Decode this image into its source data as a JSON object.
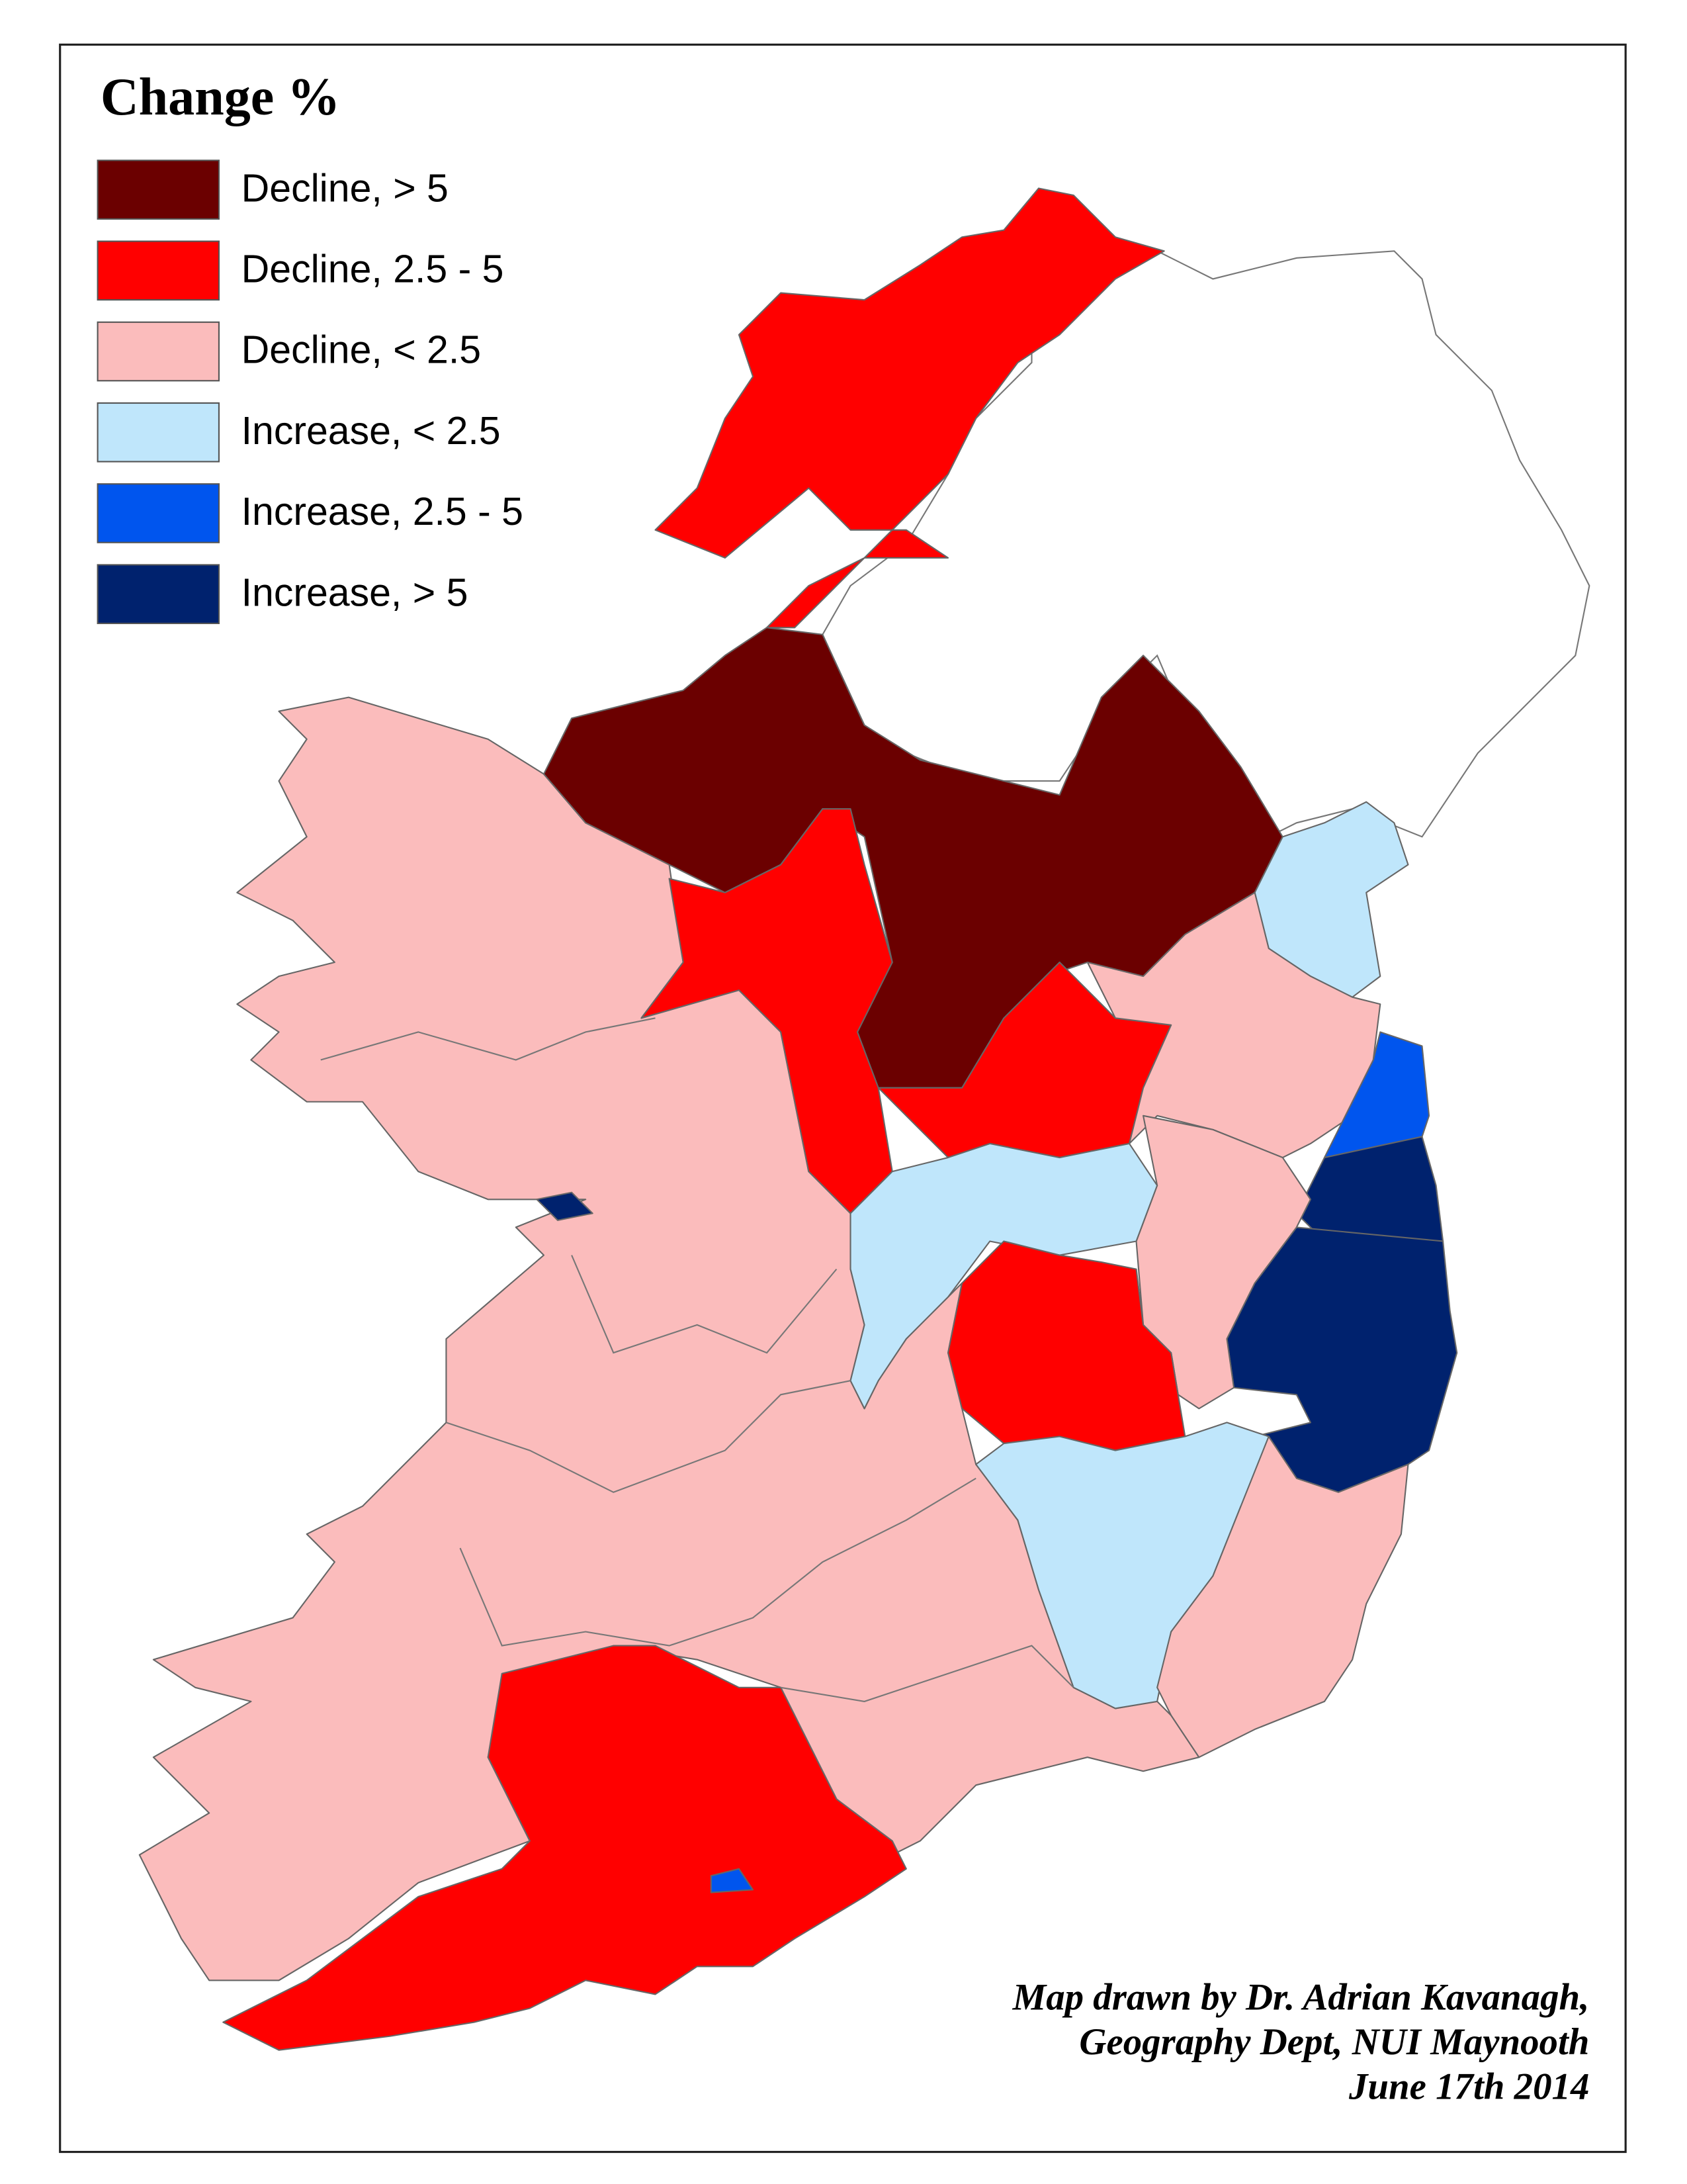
{
  "legend": {
    "title": "Change %",
    "items": [
      {
        "label": "Decline, > 5",
        "color": "#6b0000"
      },
      {
        "label": "Decline, 2.5 - 5",
        "color": "#ff0000"
      },
      {
        "label": "Decline, < 2.5",
        "color": "#fbbcbc"
      },
      {
        "label": "Increase, < 2.5",
        "color": "#bfe6fb"
      },
      {
        "label": "Increase, 2.5 - 5",
        "color": "#0055ee"
      },
      {
        "label": "Increase, > 5",
        "color": "#00226e"
      }
    ]
  },
  "credit": [
    "Map drawn by Dr. Adrian Kavanagh,",
    "Geography Dept, NUI Maynooth",
    "June 17th 2014"
  ]
}
